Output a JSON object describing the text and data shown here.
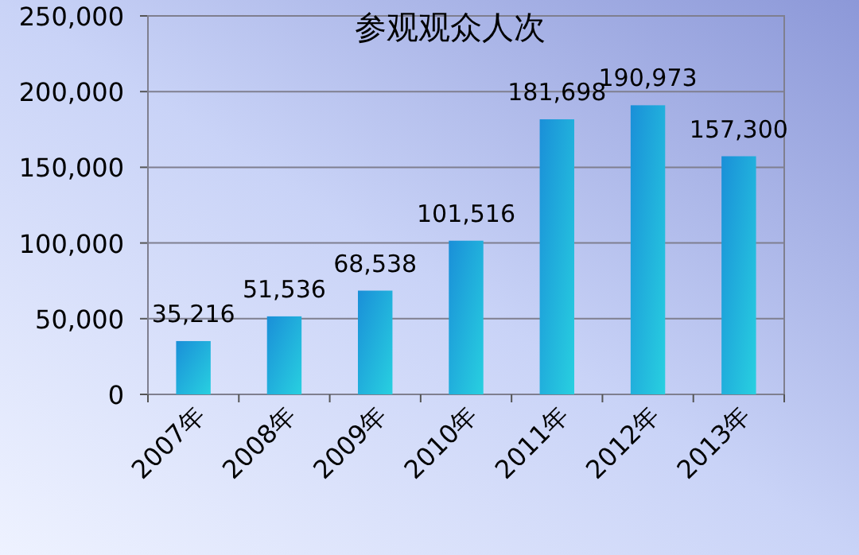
{
  "chart_data": {
    "type": "bar",
    "title": "参观观众人次",
    "categories": [
      "2007年",
      "2008年",
      "2009年",
      "2010年",
      "2011年",
      "2012年",
      "2013年"
    ],
    "values": [
      35216,
      51536,
      68538,
      101516,
      181698,
      190973,
      157300
    ],
    "color": "#1a8fd8",
    "ylim": [
      0,
      250000
    ],
    "yticks": [
      {
        "value": 0,
        "label": "0"
      },
      {
        "value": 50000,
        "label": "50,000"
      },
      {
        "value": 100000,
        "label": "100,000"
      },
      {
        "value": 150000,
        "label": "150,000"
      },
      {
        "value": 200000,
        "label": "200,000"
      },
      {
        "value": 250000,
        "label": "250,000"
      }
    ],
    "value_labels": [
      "35,216",
      "51,536",
      "68,538",
      "101,516",
      "181,698",
      "190,973",
      "157,300"
    ],
    "grid": "y"
  }
}
